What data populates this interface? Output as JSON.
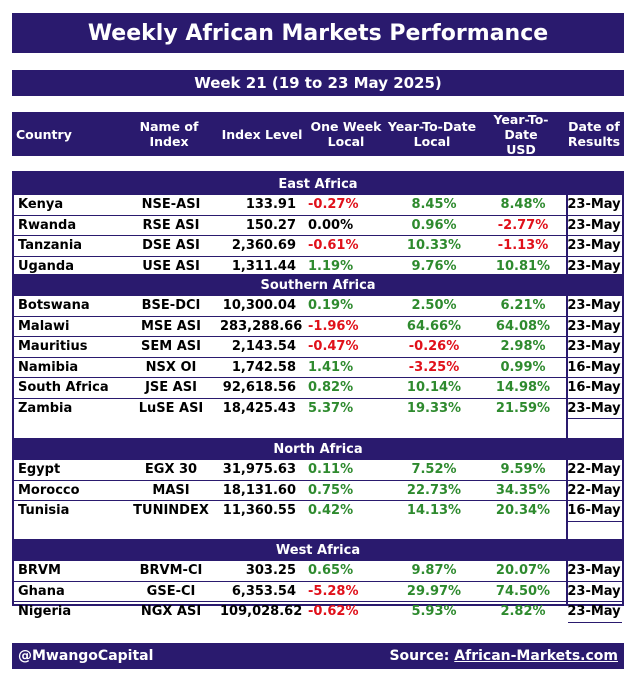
{
  "title": "Weekly African Markets Performance",
  "week": "Week 21 (19 to 23 May 2025)",
  "headers": {
    "country": "Country",
    "index_name": "Name of Index",
    "index_level": "Index Level",
    "one_week": "One Week\nLocal",
    "ytd_local": "Year-To-Date\nLocal",
    "ytd_usd": "Year-To-Date\nUSD",
    "date": "Date of\nResults"
  },
  "regions": [
    {
      "name": "East Africa",
      "rows": [
        {
          "country": "Kenya",
          "index": "NSE-ASI",
          "level": "133.91",
          "wk": "-0.27%",
          "ytd_local": "8.45%",
          "ytd_usd": "8.48%",
          "date": "23-May"
        },
        {
          "country": "Rwanda",
          "index": "RSE ASI",
          "level": "150.27",
          "wk": "0.00%",
          "ytd_local": "0.96%",
          "ytd_usd": "-2.77%",
          "date": "23-May"
        },
        {
          "country": "Tanzania",
          "index": "DSE ASI",
          "level": "2,360.69",
          "wk": "-0.61%",
          "ytd_local": "10.33%",
          "ytd_usd": "-1.13%",
          "date": "23-May"
        },
        {
          "country": "Uganda",
          "index": "USE ASI",
          "level": "1,311.44",
          "wk": "1.19%",
          "ytd_local": "9.76%",
          "ytd_usd": "10.81%",
          "date": "23-May"
        }
      ]
    },
    {
      "name": "Southern Africa",
      "rows": [
        {
          "country": "Botswana",
          "index": "BSE-DCI",
          "level": "10,300.04",
          "wk": "0.19%",
          "ytd_local": "2.50%",
          "ytd_usd": "6.21%",
          "date": "23-May"
        },
        {
          "country": "Malawi",
          "index": "MSE ASI",
          "level": "283,288.66",
          "wk": "-1.96%",
          "ytd_local": "64.66%",
          "ytd_usd": "64.08%",
          "date": "23-May"
        },
        {
          "country": "Mauritius",
          "index": "SEM ASI",
          "level": "2,143.54",
          "wk": "-0.47%",
          "ytd_local": "-0.26%",
          "ytd_usd": "2.98%",
          "date": "23-May"
        },
        {
          "country": "Namibia",
          "index": "NSX OI",
          "level": "1,742.58",
          "wk": "1.41%",
          "ytd_local": "-3.25%",
          "ytd_usd": "0.99%",
          "date": "16-May"
        },
        {
          "country": "South Africa",
          "index": "JSE ASI",
          "level": "92,618.56",
          "wk": "0.82%",
          "ytd_local": "10.14%",
          "ytd_usd": "14.98%",
          "date": "16-May"
        },
        {
          "country": "Zambia",
          "index": "LuSE ASI",
          "level": "18,425.43",
          "wk": "5.37%",
          "ytd_local": "19.33%",
          "ytd_usd": "21.59%",
          "date": "23-May"
        }
      ]
    },
    {
      "name": "North Africa",
      "rows": [
        {
          "country": "Egypt",
          "index": "EGX 30",
          "level": "31,975.63",
          "wk": "0.11%",
          "ytd_local": "7.52%",
          "ytd_usd": "9.59%",
          "date": "22-May"
        },
        {
          "country": "Morocco",
          "index": "MASI",
          "level": "18,131.60",
          "wk": "0.75%",
          "ytd_local": "22.73%",
          "ytd_usd": "34.35%",
          "date": "22-May"
        },
        {
          "country": "Tunisia",
          "index": "TUNINDEX",
          "level": "11,360.55",
          "wk": "0.42%",
          "ytd_local": "14.13%",
          "ytd_usd": "20.34%",
          "date": "16-May"
        }
      ]
    },
    {
      "name": "West Africa",
      "rows": [
        {
          "country": "BRVM",
          "index": "BRVM-CI",
          "level": "303.25",
          "wk": "0.65%",
          "ytd_local": "9.87%",
          "ytd_usd": "20.07%",
          "date": "23-May"
        },
        {
          "country": "Ghana",
          "index": "GSE-CI",
          "level": "6,353.54",
          "wk": "-5.28%",
          "ytd_local": "29.97%",
          "ytd_usd": "74.50%",
          "date": "23-May"
        },
        {
          "country": "Nigeria",
          "index": "NGX ASI",
          "level": "109,028.62",
          "wk": "-0.62%",
          "ytd_local": "5.93%",
          "ytd_usd": "2.82%",
          "date": "23-May"
        }
      ]
    }
  ],
  "footer": {
    "handle": "@MwangoCapital",
    "source_label": "Source:",
    "source_link": "African-Markets.com"
  },
  "colors": {
    "header_bg": "#2a1a6e",
    "positive": "#2e8a2e",
    "negative": "#e0101a"
  }
}
